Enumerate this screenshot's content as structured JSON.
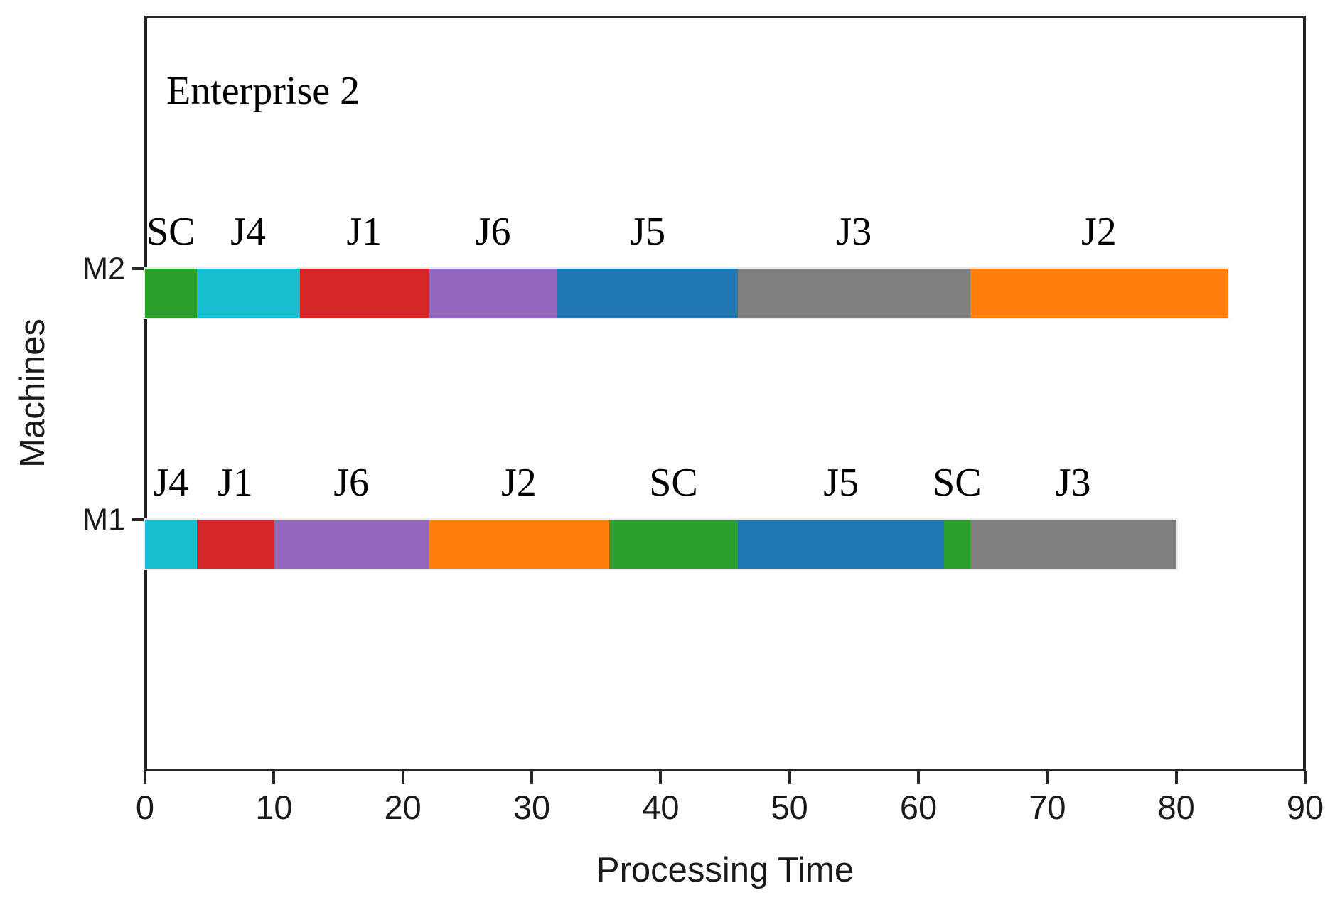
{
  "title": "Enterprise 2",
  "axes": {
    "x_label": "Processing Time",
    "y_label": "Machines"
  },
  "chart_data": {
    "type": "bar",
    "subtype": "gantt-horizontal-stacked",
    "title": "Enterprise 2",
    "xlabel": "Processing Time",
    "ylabel": "Machines",
    "xlim": [
      0,
      90
    ],
    "x_ticks": [
      0,
      10,
      20,
      30,
      40,
      50,
      60,
      70,
      80,
      90
    ],
    "grid": false,
    "legend": "none",
    "job_colors": {
      "SC": "#2ca02c",
      "J4": "#17becf",
      "J1": "#d62728",
      "J6": "#9467bd",
      "J2": "#ff7f0e",
      "J5": "#1f77b4",
      "J3": "#7f7f7f"
    },
    "rows": [
      {
        "machine": "M2",
        "segments": [
          {
            "job": "SC",
            "start": 0,
            "end": 4
          },
          {
            "job": "J4",
            "start": 4,
            "end": 12
          },
          {
            "job": "J1",
            "start": 12,
            "end": 22
          },
          {
            "job": "J6",
            "start": 22,
            "end": 32
          },
          {
            "job": "J5",
            "start": 32,
            "end": 46
          },
          {
            "job": "J3",
            "start": 46,
            "end": 64
          },
          {
            "job": "J2",
            "start": 64,
            "end": 84
          }
        ]
      },
      {
        "machine": "M1",
        "segments": [
          {
            "job": "J4",
            "start": 0,
            "end": 4
          },
          {
            "job": "J1",
            "start": 4,
            "end": 10
          },
          {
            "job": "J6",
            "start": 10,
            "end": 22
          },
          {
            "job": "J2",
            "start": 22,
            "end": 36
          },
          {
            "job": "SC",
            "start": 36,
            "end": 46
          },
          {
            "job": "J5",
            "start": 46,
            "end": 62
          },
          {
            "job": "SC",
            "start": 62,
            "end": 64
          },
          {
            "job": "J3",
            "start": 64,
            "end": 80
          }
        ]
      }
    ]
  }
}
